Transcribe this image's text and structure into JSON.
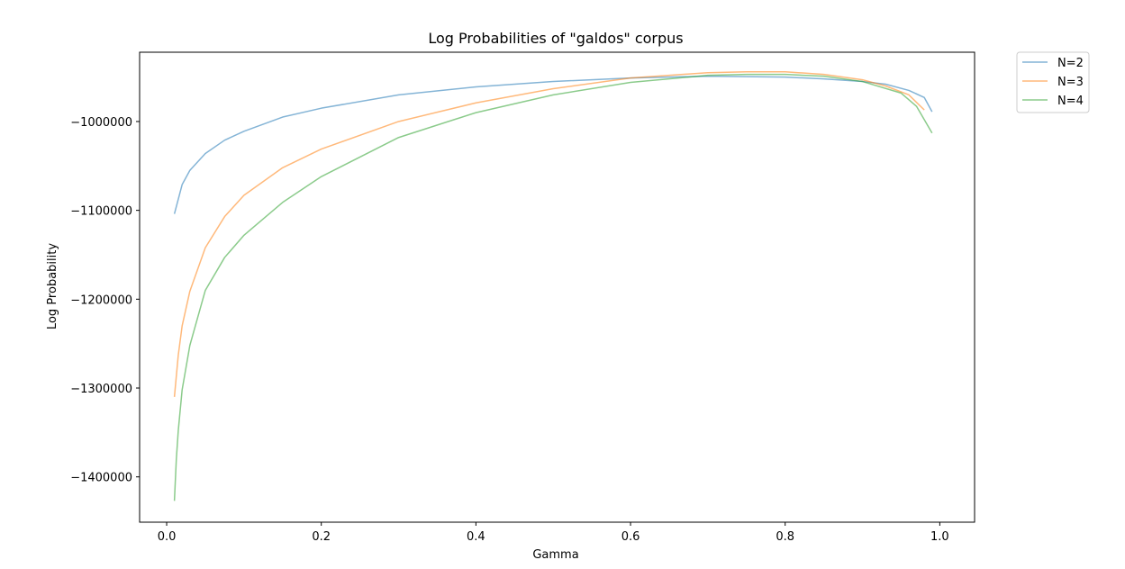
{
  "chart_data": {
    "type": "line",
    "title": "Log Probabilities of \"galdos\" corpus",
    "xlabel": "Gamma",
    "ylabel": "Log Probability",
    "xlim": [
      -0.035,
      1.045
    ],
    "ylim": [
      -1451000,
      -922000
    ],
    "xticks": [
      0.0,
      0.2,
      0.4,
      0.6,
      0.8,
      1.0
    ],
    "xtick_labels": [
      "0.0",
      "0.2",
      "0.4",
      "0.6",
      "0.8",
      "1.0"
    ],
    "yticks": [
      -1400000,
      -1300000,
      -1200000,
      -1100000,
      -1000000
    ],
    "ytick_labels": [
      "−1400000",
      "−1300000",
      "−1200000",
      "−1100000",
      "−1000000"
    ],
    "grid": false,
    "legend_position": "outside-top-right",
    "series": [
      {
        "name": "N=2",
        "color": "#1f77b4",
        "x": [
          0.01,
          0.02,
          0.03,
          0.05,
          0.075,
          0.1,
          0.15,
          0.2,
          0.3,
          0.4,
          0.5,
          0.6,
          0.7,
          0.8,
          0.85,
          0.9,
          0.93,
          0.96,
          0.98,
          0.99
        ],
        "y": [
          -1104000,
          -1071000,
          -1055000,
          -1036000,
          -1021000,
          -1011000,
          -995000,
          -985000,
          -970000,
          -961000,
          -955000,
          -951000,
          -949000,
          -950000,
          -952000,
          -955000,
          -958000,
          -965000,
          -973000,
          -989000
        ]
      },
      {
        "name": "N=3",
        "color": "#ff7f0e",
        "x": [
          0.01,
          0.015,
          0.02,
          0.03,
          0.05,
          0.075,
          0.1,
          0.15,
          0.2,
          0.3,
          0.4,
          0.5,
          0.6,
          0.7,
          0.75,
          0.8,
          0.85,
          0.9,
          0.93,
          0.96,
          0.98
        ],
        "y": [
          -1310000,
          -1263000,
          -1230000,
          -1191000,
          -1142000,
          -1107000,
          -1083000,
          -1052000,
          -1031000,
          -1000000,
          -979000,
          -963000,
          -951000,
          -945000,
          -944000,
          -944000,
          -947000,
          -953000,
          -960000,
          -970000,
          -987000
        ]
      },
      {
        "name": "N=4",
        "color": "#2ca02c",
        "x": [
          0.01,
          0.0125,
          0.015,
          0.02,
          0.03,
          0.05,
          0.075,
          0.1,
          0.15,
          0.2,
          0.3,
          0.4,
          0.5,
          0.6,
          0.7,
          0.75,
          0.8,
          0.85,
          0.9,
          0.95,
          0.97,
          0.99
        ],
        "y": [
          -1427000,
          -1380000,
          -1348000,
          -1302000,
          -1252000,
          -1190000,
          -1153000,
          -1128000,
          -1091000,
          -1062000,
          -1018000,
          -990000,
          -970000,
          -956000,
          -948000,
          -947000,
          -947000,
          -949000,
          -955000,
          -968000,
          -983000,
          -1013000
        ]
      }
    ]
  }
}
